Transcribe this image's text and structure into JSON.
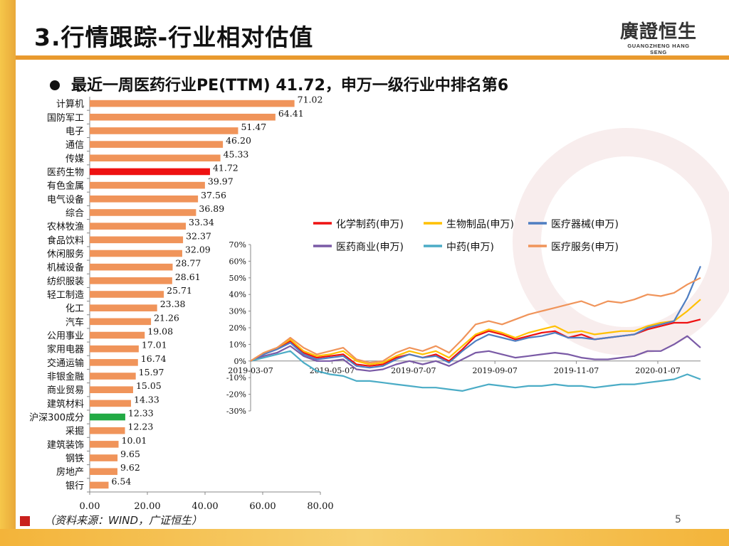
{
  "slide": {
    "title": "3.行情跟踪-行业相对估值",
    "logo_cn": "廣證恒生",
    "logo_en": "GUANGZHENG HANG SENG",
    "headline": "最近一周医药行业PE(TTM) 41.72，申万一级行业中排名第6",
    "source_note": "（资料来源：WIND，广证恒生）",
    "page_number": "5"
  },
  "colors": {
    "bar_default": "#f0945a",
    "bar_highlight_red": "#ee1111",
    "bar_highlight_green": "#22aa44",
    "accent_orange": "#e99a2e"
  },
  "chart_data": [
    {
      "type": "bar",
      "orientation": "horizontal",
      "title": "",
      "categories": [
        "计算机",
        "国防军工",
        "电子",
        "通信",
        "传媒",
        "医药生物",
        "有色金属",
        "电气设备",
        "综合",
        "农林牧渔",
        "食品饮料",
        "休闲服务",
        "机械设备",
        "纺织服装",
        "轻工制造",
        "化工",
        "汽车",
        "公用事业",
        "家用电器",
        "交通运输",
        "非银金融",
        "商业贸易",
        "建筑材料",
        "沪深300成分",
        "采掘",
        "建筑装饰",
        "钢铁",
        "房地产",
        "银行"
      ],
      "values": [
        71.02,
        64.41,
        51.47,
        46.2,
        45.33,
        41.72,
        39.97,
        37.56,
        36.89,
        33.34,
        32.37,
        32.09,
        28.77,
        28.61,
        25.71,
        23.38,
        21.26,
        19.08,
        17.01,
        16.74,
        15.97,
        15.05,
        14.33,
        12.33,
        12.23,
        10.01,
        9.65,
        9.62,
        6.54
      ],
      "value_labels": [
        "71.02",
        "64.41",
        "51.47",
        "46.20",
        "45.33",
        "41.72",
        "39.97",
        "37.56",
        "36.89",
        "33.34",
        "32.37",
        "32.09",
        "28.77",
        "28.61",
        "25.71",
        "23.38",
        "21.26",
        "19.08",
        "17.01",
        "16.74",
        "15.97",
        "15.05",
        "14.33",
        "12.33",
        "12.23",
        "10.01",
        "9.65",
        "9.62",
        "6.54"
      ],
      "highlight": {
        "医药生物": "red",
        "沪深300成分": "green"
      },
      "xlim": [
        0,
        80
      ],
      "xticks": [
        "0.00",
        "20.00",
        "40.00",
        "60.00",
        "80.00"
      ]
    },
    {
      "type": "line",
      "title": "",
      "x_tick_labels": [
        "2019-03-07",
        "2019-05-07",
        "2019-07-07",
        "2019-09-07",
        "2019-11-07",
        "2020-01-07"
      ],
      "ylim": [
        -30,
        70
      ],
      "yticks": [
        "-30%",
        "-20%",
        "-10%",
        "0%",
        "10%",
        "20%",
        "30%",
        "40%",
        "50%",
        "60%",
        "70%"
      ],
      "legend": [
        {
          "name": "化学制药(申万)",
          "color": "#ee1111"
        },
        {
          "name": "生物制品(申万)",
          "color": "#ffc000"
        },
        {
          "name": "医疗器械(申万)",
          "color": "#4f7ec2"
        },
        {
          "name": "医药商业(申万)",
          "color": "#7a5aa6"
        },
        {
          "name": "中药(申万)",
          "color": "#4bacc6"
        },
        {
          "name": "医疗服务(申万)",
          "color": "#f0945a"
        }
      ],
      "series": [
        {
          "name": "化学制药(申万)",
          "values": [
            0,
            4,
            8,
            12,
            5,
            2,
            3,
            4,
            -2,
            -3,
            -2,
            2,
            4,
            2,
            4,
            0,
            7,
            15,
            18,
            16,
            13,
            15,
            17,
            18,
            14,
            16,
            13,
            14,
            15,
            16,
            19,
            21,
            23,
            23,
            25
          ]
        },
        {
          "name": "生物制品(申万)",
          "values": [
            0,
            5,
            8,
            13,
            6,
            3,
            4,
            6,
            0,
            -2,
            -1,
            3,
            6,
            4,
            6,
            2,
            9,
            16,
            19,
            17,
            14,
            17,
            19,
            21,
            17,
            18,
            16,
            17,
            18,
            18,
            21,
            23,
            24,
            30,
            37
          ]
        },
        {
          "name": "医疗器械(申万)",
          "values": [
            0,
            4,
            7,
            11,
            4,
            1,
            2,
            3,
            -3,
            -4,
            -3,
            1,
            4,
            2,
            3,
            -1,
            6,
            12,
            16,
            14,
            12,
            14,
            15,
            17,
            14,
            14,
            13,
            14,
            15,
            16,
            20,
            22,
            24,
            38,
            57
          ]
        },
        {
          "name": "医药商业(申万)",
          "values": [
            0,
            3,
            5,
            9,
            3,
            0,
            0,
            1,
            -5,
            -6,
            -5,
            -2,
            0,
            -2,
            0,
            -3,
            1,
            5,
            6,
            4,
            2,
            3,
            4,
            5,
            4,
            2,
            1,
            1,
            2,
            3,
            6,
            6,
            10,
            15,
            8
          ]
        },
        {
          "name": "中药(申万)",
          "values": [
            0,
            2,
            4,
            6,
            -1,
            -6,
            -8,
            -9,
            -12,
            -12,
            -13,
            -14,
            -15,
            -16,
            -16,
            -17,
            -18,
            -16,
            -14,
            -15,
            -16,
            -15,
            -15,
            -14,
            -15,
            -15,
            -16,
            -15,
            -14,
            -14,
            -13,
            -12,
            -11,
            -8,
            -11
          ]
        },
        {
          "name": "医疗服务(申万)",
          "values": [
            0,
            5,
            8,
            14,
            8,
            4,
            6,
            8,
            1,
            -1,
            0,
            5,
            8,
            6,
            9,
            5,
            13,
            22,
            24,
            22,
            25,
            28,
            30,
            32,
            34,
            36,
            33,
            36,
            35,
            37,
            40,
            39,
            41,
            46,
            50
          ]
        }
      ]
    }
  ]
}
